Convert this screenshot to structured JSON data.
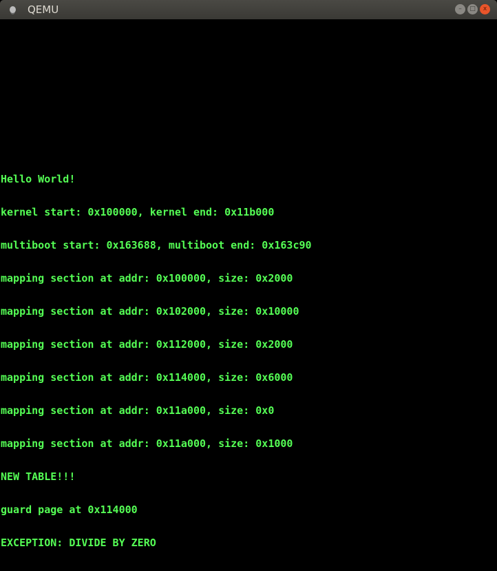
{
  "window": {
    "title": "QEMU",
    "buttons": {
      "minimize": "–",
      "maximize": "□",
      "close": "x"
    }
  },
  "console": {
    "text_color": "#55ff55",
    "background": "#000000",
    "lines": [
      "Hello World!",
      "kernel start: 0x100000, kernel end: 0x11b000",
      "multiboot start: 0x163688, multiboot end: 0x163c90",
      "mapping section at addr: 0x100000, size: 0x2000",
      "mapping section at addr: 0x102000, size: 0x10000",
      "mapping section at addr: 0x112000, size: 0x2000",
      "mapping section at addr: 0x114000, size: 0x6000",
      "mapping section at addr: 0x11a000, size: 0x0",
      "mapping section at addr: 0x11a000, size: 0x1000",
      "NEW TABLE!!!",
      "guard page at 0x114000",
      "EXCEPTION: DIVIDE BY ZERO"
    ]
  }
}
